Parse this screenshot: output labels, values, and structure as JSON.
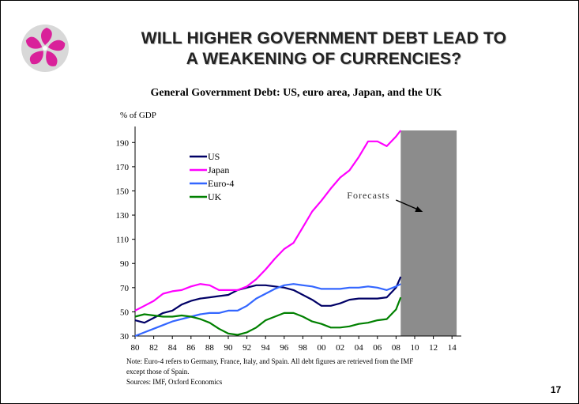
{
  "slide": {
    "title_line1": "WILL HIGHER GOVERNMENT DEBT LEAD TO",
    "title_line2": "A WEAKENING OF CURRENCIES?",
    "page_number": "17",
    "note_line1": "Note: Euro-4 refers to Germany, France, Italy, and Spain.  All debt figures are retrieved from the IMF",
    "note_line2": "except those of Spain.",
    "sources": "Sources: IMF, Oxford Economics",
    "logo": "bauhinia-flower-emblem"
  },
  "chart_data": {
    "type": "line",
    "title": "General Government Debt: US, euro area, Japan, and the UK",
    "ylabel": "% of GDP",
    "xlabel": "",
    "ylim": [
      30,
      200
    ],
    "xlim": [
      1980,
      2015
    ],
    "yticks": [
      30,
      50,
      70,
      90,
      110,
      130,
      150,
      170,
      190
    ],
    "xticks": [
      "80",
      "82",
      "84",
      "86",
      "88",
      "90",
      "92",
      "94",
      "96",
      "98",
      "00",
      "02",
      "04",
      "06",
      "08",
      "10",
      "12",
      "14"
    ],
    "forecast": {
      "label": "Forecasts",
      "from": 2008.5,
      "to": 2014.5
    },
    "grid": false,
    "legend_position": "upper-left",
    "x": [
      1980,
      1981,
      1982,
      1983,
      1984,
      1985,
      1986,
      1987,
      1988,
      1989,
      1990,
      1991,
      1992,
      1993,
      1994,
      1995,
      1996,
      1997,
      1998,
      1999,
      2000,
      2001,
      2002,
      2003,
      2004,
      2005,
      2006,
      2007,
      2008,
      2008.5
    ],
    "series": [
      {
        "name": "US",
        "color": "#000066",
        "values": [
          43,
          41,
          45,
          49,
          51,
          56,
          59,
          61,
          62,
          63,
          64,
          68,
          70,
          72,
          72,
          71,
          70,
          68,
          64,
          60,
          55,
          55,
          57,
          60,
          61,
          61,
          61,
          62,
          70,
          79
        ]
      },
      {
        "name": "Japan",
        "color": "#ff00ff",
        "values": [
          51,
          55,
          59,
          65,
          67,
          68,
          71,
          73,
          72,
          68,
          68,
          68,
          71,
          77,
          85,
          94,
          102,
          107,
          120,
          133,
          142,
          152,
          161,
          167,
          178,
          191,
          191,
          187,
          195,
          200
        ]
      },
      {
        "name": "Euro-4",
        "color": "#3366ff",
        "values": [
          30,
          33,
          36,
          39,
          42,
          44,
          46,
          48,
          49,
          49,
          51,
          51,
          55,
          61,
          65,
          69,
          72,
          73,
          72,
          71,
          69,
          69,
          69,
          70,
          70,
          71,
          70,
          68,
          71,
          73
        ]
      },
      {
        "name": "UK",
        "color": "#008000",
        "values": [
          46,
          48,
          47,
          46,
          46,
          47,
          46,
          44,
          41,
          36,
          32,
          31,
          33,
          37,
          43,
          46,
          49,
          49,
          46,
          42,
          40,
          37,
          37,
          38,
          40,
          41,
          43,
          44,
          52,
          62
        ]
      }
    ]
  }
}
